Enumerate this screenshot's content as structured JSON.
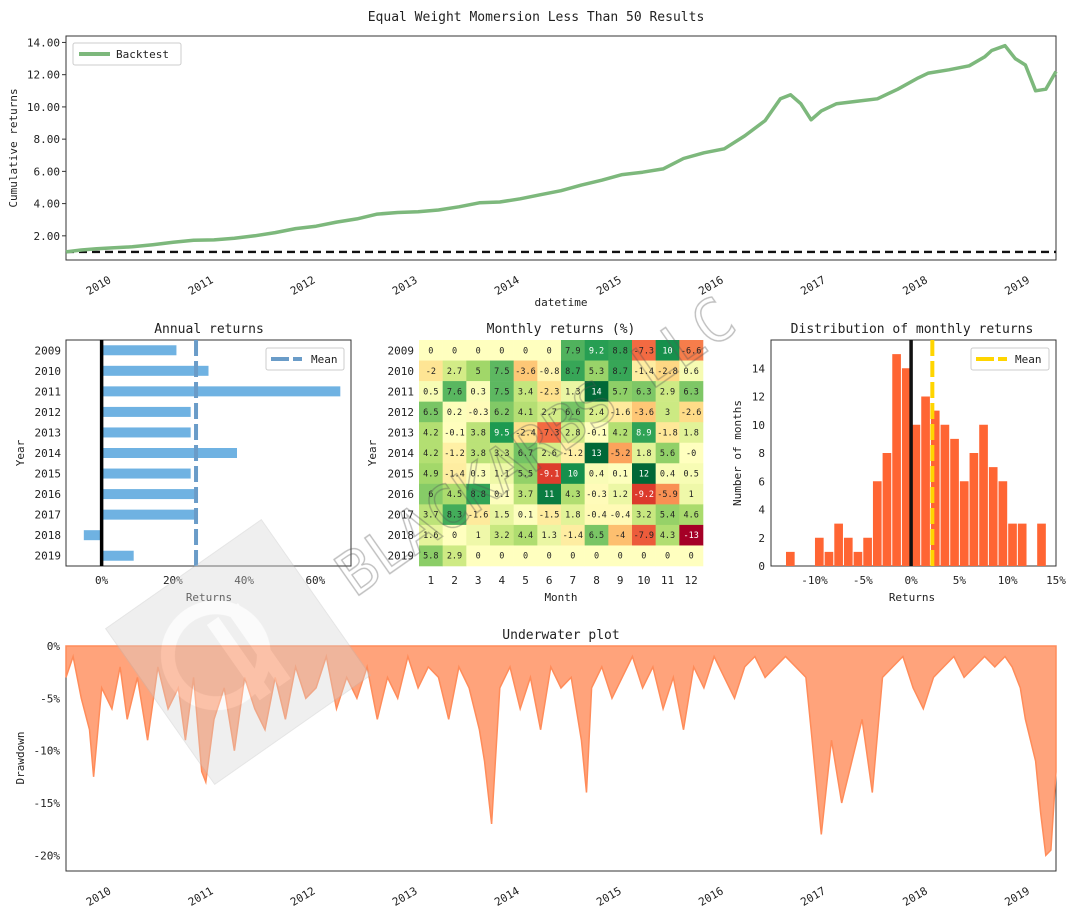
{
  "page": {
    "title": "Equal Weight Momersion Less Than 50 Results"
  },
  "watermark": {
    "text": "BLACKARBS LLC"
  },
  "chart_data": [
    {
      "type": "line",
      "id": "cumulative",
      "xlabel": "datetime",
      "ylabel": "Cumulative returns",
      "legend": {
        "entries": [
          "Backtest"
        ],
        "placement": "top-left"
      },
      "xlim": [
        2009.55,
        2019.25
      ],
      "ylim": [
        0.5,
        14.4
      ],
      "yticks": [
        2,
        4,
        6,
        8,
        10,
        12,
        14
      ],
      "ytick_labels": [
        "2.00",
        "4.00",
        "6.00",
        "8.00",
        "10.00",
        "12.00",
        "14.00"
      ],
      "xticks": [
        2010,
        2011,
        2012,
        2013,
        2014,
        2015,
        2016,
        2017,
        2018,
        2019
      ],
      "xtick_labels": [
        "2010",
        "2011",
        "2012",
        "2013",
        "2014",
        "2015",
        "2016",
        "2017",
        "2018",
        "2019"
      ],
      "baseline": 1.0,
      "series": [
        {
          "name": "Backtest",
          "color": "#7db87c",
          "x": [
            2009.55,
            2009.7,
            2009.85,
            2010.0,
            2010.2,
            2010.4,
            2010.6,
            2010.8,
            2011.0,
            2011.2,
            2011.4,
            2011.6,
            2011.8,
            2012.0,
            2012.2,
            2012.4,
            2012.6,
            2012.8,
            2013.0,
            2013.2,
            2013.4,
            2013.6,
            2013.8,
            2014.0,
            2014.2,
            2014.4,
            2014.6,
            2014.8,
            2015.0,
            2015.2,
            2015.4,
            2015.6,
            2015.8,
            2016.0,
            2016.2,
            2016.4,
            2016.55,
            2016.65,
            2016.75,
            2016.85,
            2016.95,
            2017.1,
            2017.3,
            2017.5,
            2017.7,
            2017.9,
            2018.0,
            2018.2,
            2018.4,
            2018.55,
            2018.62,
            2018.75,
            2018.85,
            2018.95,
            2019.05,
            2019.15,
            2019.25
          ],
          "y": [
            1.0,
            1.12,
            1.2,
            1.25,
            1.32,
            1.45,
            1.6,
            1.72,
            1.75,
            1.85,
            2.0,
            2.2,
            2.45,
            2.6,
            2.85,
            3.05,
            3.35,
            3.45,
            3.5,
            3.6,
            3.8,
            4.05,
            4.1,
            4.3,
            4.55,
            4.8,
            5.15,
            5.45,
            5.8,
            5.95,
            6.15,
            6.8,
            7.15,
            7.4,
            8.2,
            9.15,
            10.5,
            10.75,
            10.2,
            9.2,
            9.75,
            10.2,
            10.35,
            10.5,
            11.1,
            11.8,
            12.1,
            12.3,
            12.55,
            13.1,
            13.5,
            13.8,
            13.0,
            12.6,
            11.0,
            11.1,
            12.2
          ]
        }
      ]
    },
    {
      "type": "bar",
      "id": "annual",
      "orientation": "horizontal",
      "title": "Annual returns",
      "xlabel": "Returns",
      "ylabel": "Year",
      "categories": [
        "2009",
        "2010",
        "2011",
        "2012",
        "2013",
        "2014",
        "2015",
        "2016",
        "2017",
        "2018",
        "2019"
      ],
      "values": [
        21,
        30,
        67,
        25,
        25,
        38,
        25,
        26,
        27,
        -5,
        9
      ],
      "mean": 26.5,
      "color": "#6fb2e2",
      "mean_color": "#6a9cc8",
      "legend": {
        "entries": [
          "Mean"
        ],
        "placement": "top-right"
      },
      "xlim": [
        -10,
        70
      ],
      "xticks": [
        0,
        20,
        40,
        60
      ],
      "xtick_labels": [
        "0%",
        "20%",
        "40%",
        "60%"
      ]
    },
    {
      "type": "heatmap",
      "id": "monthly",
      "title": "Monthly returns (%)",
      "xlabel": "Month",
      "ylabel": "Year",
      "columns": [
        "1",
        "2",
        "3",
        "4",
        "5",
        "6",
        "7",
        "8",
        "9",
        "10",
        "11",
        "12"
      ],
      "rows": [
        "2009",
        "2010",
        "2011",
        "2012",
        "2013",
        "2014",
        "2015",
        "2016",
        "2017",
        "2018",
        "2019"
      ],
      "values": [
        [
          0,
          0,
          0,
          0,
          0,
          0,
          7.9,
          9.2,
          8.8,
          -7.3,
          10,
          -6.6
        ],
        [
          -2,
          2.7,
          5,
          7.5,
          -3.6,
          -0.8,
          8.7,
          5.3,
          8.7,
          -1.4,
          -2.8,
          0.6
        ],
        [
          0.5,
          7.6,
          0.3,
          7.5,
          3.4,
          -2.3,
          1.3,
          14,
          5.7,
          6.3,
          2.9,
          6.3
        ],
        [
          6.5,
          0.2,
          -0.3,
          6.2,
          4.1,
          2.7,
          6.6,
          2.4,
          -1.6,
          -3.6,
          3,
          -2.6
        ],
        [
          4.2,
          -0.1,
          3.8,
          9.5,
          -2.4,
          -7.3,
          2.8,
          -0.1,
          4.2,
          8.9,
          -1.8,
          1.8
        ],
        [
          4.2,
          -1.2,
          3.8,
          3.3,
          6.7,
          2.6,
          -1.2,
          13,
          -5.2,
          1.8,
          5.6,
          0
        ],
        [
          4.9,
          -1.4,
          0.3,
          1.1,
          5.5,
          -9.1,
          10,
          0.4,
          0.1,
          12,
          0.4,
          0.5
        ],
        [
          6,
          4.5,
          8.8,
          0.1,
          3.7,
          11,
          4.3,
          -0.3,
          1.2,
          -9.2,
          -5.9,
          1
        ],
        [
          3.7,
          8.3,
          -1.6,
          1.5,
          0.1,
          -1.5,
          1.8,
          -0.4,
          -0.4,
          3.2,
          5.4,
          4.6
        ],
        [
          1.6,
          0,
          1,
          3.2,
          4.4,
          1.3,
          -1.4,
          6.5,
          -4,
          -7.9,
          4.3,
          -13
        ],
        [
          5.8,
          2.9,
          0,
          0,
          0,
          0,
          0,
          0,
          0,
          0,
          0,
          0
        ]
      ],
      "colormap": "RdYlGn",
      "vrange": [
        -12,
        12
      ]
    },
    {
      "type": "bar",
      "id": "distribution",
      "title": "Distribution of monthly returns",
      "xlabel": "Returns",
      "ylabel": "Number of months",
      "bin_edges": [
        -13,
        -12,
        -11,
        -10,
        -9,
        -8,
        -7,
        -6,
        -5,
        -4,
        -3,
        -2,
        -1,
        0,
        1,
        2,
        3,
        4,
        5,
        6,
        7,
        8,
        9,
        10,
        11,
        12,
        13,
        14
      ],
      "counts": [
        1,
        0,
        0,
        2,
        1,
        3,
        2,
        1,
        2,
        6,
        8,
        15,
        14,
        10,
        12,
        11,
        10,
        9,
        6,
        8,
        10,
        7,
        6,
        3,
        3,
        0,
        3
      ],
      "mean": 2.2,
      "zero_line": 0,
      "color": "#ff6533",
      "mean_color": "#ffd500",
      "legend": {
        "entries": [
          "Mean"
        ],
        "placement": "top-right"
      },
      "xlim": [
        -14.5,
        15
      ],
      "ylim": [
        0,
        16
      ],
      "xticks": [
        -10,
        -5,
        0,
        5,
        10,
        15
      ],
      "xtick_labels": [
        "-10%",
        "-5%",
        "0%",
        "5%",
        "10%",
        "15%"
      ],
      "yticks": [
        0,
        2,
        4,
        6,
        8,
        10,
        12,
        14
      ],
      "ytick_labels": [
        "0",
        "2",
        "4",
        "6",
        "8",
        "10",
        "12",
        "14"
      ]
    },
    {
      "type": "area",
      "id": "underwater",
      "title": "Underwater plot",
      "ylabel": "Drawdown",
      "color": "#ff8c5a",
      "xlim": [
        2009.55,
        2019.25
      ],
      "ylim": [
        -21.5,
        0
      ],
      "yticks": [
        0,
        -5,
        -10,
        -15,
        -20
      ],
      "ytick_labels": [
        "0%",
        "-5%",
        "-10%",
        "-15%",
        "-20%"
      ],
      "xticks": [
        2010,
        2011,
        2012,
        2013,
        2014,
        2015,
        2016,
        2017,
        2018,
        2019
      ],
      "xtick_labels": [
        "2010",
        "2011",
        "2012",
        "2013",
        "2014",
        "2015",
        "2016",
        "2017",
        "2018",
        "2019"
      ],
      "x": [
        2009.55,
        2009.62,
        2009.7,
        2009.78,
        2009.82,
        2009.9,
        2010.0,
        2010.08,
        2010.15,
        2010.25,
        2010.35,
        2010.45,
        2010.55,
        2010.65,
        2010.72,
        2010.8,
        2010.88,
        2010.92,
        2011.0,
        2011.1,
        2011.2,
        2011.3,
        2011.4,
        2011.5,
        2011.6,
        2011.7,
        2011.8,
        2011.9,
        2012.0,
        2012.1,
        2012.2,
        2012.3,
        2012.4,
        2012.5,
        2012.6,
        2012.7,
        2012.8,
        2012.9,
        2013.0,
        2013.1,
        2013.2,
        2013.3,
        2013.4,
        2013.5,
        2013.6,
        2013.65,
        2013.72,
        2013.8,
        2013.9,
        2014.0,
        2014.1,
        2014.2,
        2014.3,
        2014.4,
        2014.5,
        2014.6,
        2014.65,
        2014.7,
        2014.8,
        2014.9,
        2015.0,
        2015.1,
        2015.2,
        2015.3,
        2015.4,
        2015.5,
        2015.6,
        2015.7,
        2015.8,
        2015.9,
        2016.0,
        2016.1,
        2016.2,
        2016.3,
        2016.4,
        2016.5,
        2016.6,
        2016.7,
        2016.8,
        2016.85,
        2016.95,
        2017.05,
        2017.15,
        2017.25,
        2017.35,
        2017.45,
        2017.55,
        2017.65,
        2017.75,
        2017.85,
        2017.95,
        2018.05,
        2018.15,
        2018.25,
        2018.35,
        2018.45,
        2018.55,
        2018.65,
        2018.75,
        2018.82,
        2018.9,
        2018.95,
        2019.0,
        2019.05,
        2019.1,
        2019.15,
        2019.2,
        2019.25
      ],
      "y": [
        -3,
        -1,
        -5,
        -8,
        -12.5,
        -4,
        -6,
        -2,
        -7,
        -3,
        -9,
        -2,
        -6,
        -4,
        -9,
        -3,
        -12,
        -13,
        -7,
        -4,
        -10,
        -3,
        -6,
        -8,
        -3,
        -7,
        -2,
        -5,
        -4,
        -1,
        -6,
        -3,
        -5,
        -2,
        -7,
        -3,
        -5,
        -1,
        -4,
        -2,
        -3,
        -7,
        -2,
        -4,
        -8,
        -11,
        -17,
        -4,
        -2,
        -6,
        -3,
        -8,
        -2,
        -4,
        -3,
        -9,
        -14,
        -4,
        -2,
        -5,
        -3,
        -1,
        -4,
        -2,
        -6,
        -3,
        -8,
        -2,
        -4,
        -1,
        -3,
        -5,
        -2,
        -1,
        -3,
        -2,
        -1,
        -2,
        -3,
        -8,
        -18,
        -9,
        -15,
        -11,
        -7,
        -14,
        -3,
        -2,
        -1,
        -4,
        -6,
        -3,
        -2,
        -1,
        -3,
        -2,
        -1,
        -2,
        -1,
        -2,
        -4,
        -7,
        -9,
        -11,
        -16,
        -20,
        -19.5,
        -12
      ]
    }
  ]
}
